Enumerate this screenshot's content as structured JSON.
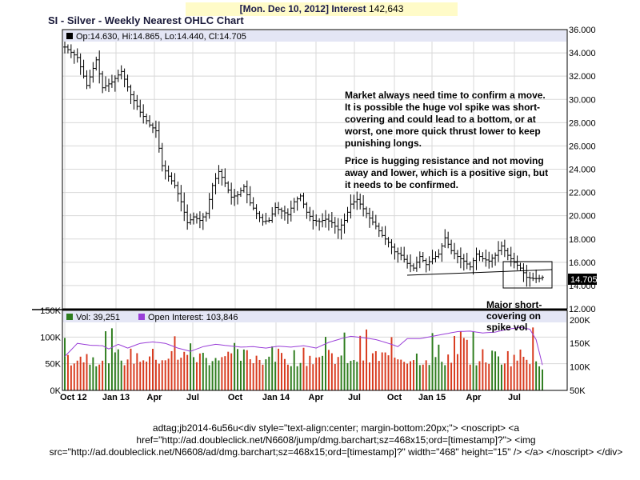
{
  "banner": {
    "date": "[Mon. Dec 10, 2012]",
    "label": "Interest",
    "value": "142,643"
  },
  "title": "SI - Silver - Weekly Nearest OHLC Chart",
  "price_legend": "Op:14.630, Hi:14.865, Lo:14.440, Cl:14.705",
  "last_price_tag": "14.705",
  "volume_legend": {
    "vol": "Vol: 39,251",
    "oi": "Open Interest: 103,846"
  },
  "annotations": {
    "paragraph1": [
      "Market always need time to confirm a move.",
      "It is possible the huge vol spike was short-",
      "covering and could lead to a bottom, or at",
      "worst, one more quick thrust lower to keep",
      "punishing longs."
    ],
    "paragraph2": [
      "Price is hugging resistance and not moving",
      "away and lower, which is a positive sign, but",
      "it needs to be confirmed."
    ],
    "spike_note": [
      "Major short-",
      "covering on",
      "spike vol"
    ]
  },
  "footer_text": "adtag;jb2014-6u56u<div style=\"text-align:center; margin-bottom:20px;\"> <noscript> <a href=\"http://ad.doubleclick.net/N6608/jump/dmg.barchart;sz=468x15;ord=[timestamp]?\"> <img src=\"http://ad.doubleclick.net/N6608/ad/dmg.barchart;sz=468x15;ord=[timestamp]?\" width=\"468\" height=\"15\" /> </a> </noscript> </div>",
  "colors": {
    "legend_bg": "#e4e6f5",
    "vol_up": "#2e7d1e",
    "vol_down": "#d83a1e",
    "open_interest": "#9a3fd8",
    "price_bar": "#000000",
    "grid": "#d8d8d8"
  },
  "chart_data": [
    {
      "type": "ohlc",
      "title": "SI - Silver - Weekly Nearest OHLC Chart",
      "x_ticks": [
        "Oct 12",
        "Jan 13",
        "Apr",
        "Jul",
        "Oct",
        "Jan 14",
        "Apr",
        "Jul",
        "Oct",
        "Jan 15",
        "Apr",
        "Jul"
      ],
      "y_ticks": [
        "36.000",
        "34.000",
        "32.000",
        "30.000",
        "28.000",
        "26.000",
        "24.000",
        "22.000",
        "20.000",
        "18.000",
        "16.000",
        "14.000",
        "12.000"
      ],
      "ylim": [
        12,
        36
      ],
      "grid": true,
      "weeks": 153,
      "close_path": [
        [
          0,
          34.5
        ],
        [
          4,
          33.6
        ],
        [
          7,
          31.2
        ],
        [
          10,
          33.4
        ],
        [
          12,
          31.0
        ],
        [
          15,
          31.5
        ],
        [
          18,
          32.4
        ],
        [
          21,
          30.4
        ],
        [
          24,
          28.9
        ],
        [
          27,
          27.8
        ],
        [
          29,
          27.3
        ],
        [
          31,
          24.3
        ],
        [
          33,
          23.4
        ],
        [
          35,
          22.6
        ],
        [
          37,
          21.2
        ],
        [
          39,
          19.4
        ],
        [
          41,
          19.9
        ],
        [
          43,
          19.6
        ],
        [
          45,
          20.2
        ],
        [
          47,
          22.6
        ],
        [
          49,
          23.8
        ],
        [
          51,
          22.8
        ],
        [
          53,
          21.6
        ],
        [
          55,
          21.8
        ],
        [
          57,
          22.5
        ],
        [
          59,
          21.1
        ],
        [
          61,
          20.2
        ],
        [
          63,
          19.5
        ],
        [
          65,
          19.6
        ],
        [
          67,
          20.7
        ],
        [
          69,
          20.4
        ],
        [
          71,
          20.1
        ],
        [
          73,
          21.2
        ],
        [
          75,
          21.7
        ],
        [
          77,
          20.3
        ],
        [
          79,
          19.6
        ],
        [
          81,
          19.5
        ],
        [
          83,
          19.7
        ],
        [
          85,
          19.4
        ],
        [
          87,
          18.8
        ],
        [
          89,
          19.6
        ],
        [
          91,
          21.0
        ],
        [
          93,
          21.4
        ],
        [
          95,
          20.6
        ],
        [
          97,
          19.8
        ],
        [
          99,
          19.1
        ],
        [
          101,
          18.3
        ],
        [
          103,
          17.7
        ],
        [
          105,
          16.9
        ],
        [
          107,
          16.6
        ],
        [
          109,
          15.9
        ],
        [
          111,
          15.5
        ],
        [
          113,
          16.5
        ],
        [
          115,
          15.8
        ],
        [
          117,
          16.3
        ],
        [
          119,
          16.7
        ],
        [
          121,
          18.1
        ],
        [
          123,
          17.0
        ],
        [
          125,
          16.5
        ],
        [
          127,
          16.1
        ],
        [
          129,
          15.6
        ],
        [
          131,
          16.7
        ],
        [
          133,
          16.3
        ],
        [
          135,
          16.1
        ],
        [
          137,
          16.6
        ],
        [
          139,
          17.4
        ],
        [
          141,
          16.6
        ],
        [
          143,
          16.0
        ],
        [
          145,
          15.5
        ],
        [
          147,
          14.7
        ],
        [
          149,
          14.6
        ],
        [
          151,
          14.6
        ],
        [
          152,
          14.705
        ]
      ],
      "last": {
        "open": 14.63,
        "high": 14.865,
        "low": 14.44,
        "close": 14.705
      }
    },
    {
      "type": "bar+line",
      "title": "",
      "x_ticks": [
        "Oct 12",
        "Jan 13",
        "Apr",
        "Jul",
        "Oct",
        "Jan 14",
        "Apr",
        "Jul",
        "Oct",
        "Jan 15",
        "Apr",
        "Jul"
      ],
      "volume_y_ticks": [
        "0K",
        "50K",
        "100K",
        "150K"
      ],
      "volume_ylim": [
        0,
        150000
      ],
      "open_interest_y_ticks": [
        "50K",
        "100K",
        "150K",
        "200K"
      ],
      "open_interest_ylim": [
        50000,
        220000
      ],
      "series": [
        {
          "name": "Vol",
          "last": 39251
        },
        {
          "name": "Open Interest",
          "last": 103846,
          "path": [
            [
              0,
              122000
            ],
            [
              4,
              150000
            ],
            [
              8,
              146000
            ],
            [
              12,
              145000
            ],
            [
              14,
              138000
            ],
            [
              17,
              148000
            ],
            [
              20,
              140000
            ],
            [
              24,
              150000
            ],
            [
              28,
              153000
            ],
            [
              32,
              150000
            ],
            [
              36,
              140000
            ],
            [
              40,
              133000
            ],
            [
              44,
              143000
            ],
            [
              48,
              148000
            ],
            [
              52,
              145000
            ],
            [
              56,
              142000
            ],
            [
              60,
              143000
            ],
            [
              64,
              140000
            ],
            [
              68,
              144000
            ],
            [
              72,
              142000
            ],
            [
              76,
              145000
            ],
            [
              80,
              140000
            ],
            [
              84,
              152000
            ],
            [
              88,
              160000
            ],
            [
              91,
              165000
            ],
            [
              95,
              162000
            ],
            [
              99,
              158000
            ],
            [
              103,
              150000
            ],
            [
              106,
              143000
            ],
            [
              109,
              160000
            ],
            [
              113,
              160000
            ],
            [
              117,
              165000
            ],
            [
              121,
              170000
            ],
            [
              125,
              175000
            ],
            [
              129,
              176000
            ],
            [
              133,
              172000
            ],
            [
              137,
              174000
            ],
            [
              141,
              180000
            ],
            [
              145,
              184000
            ],
            [
              148,
              180000
            ],
            [
              150,
              158000
            ],
            [
              152,
              103846
            ]
          ]
        }
      ]
    }
  ]
}
